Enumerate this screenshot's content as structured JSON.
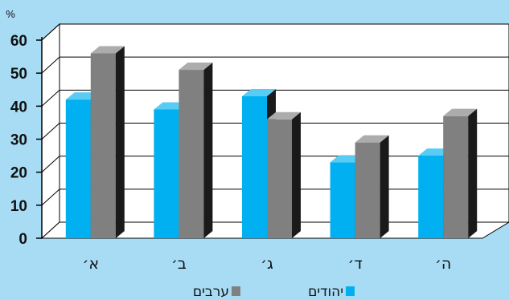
{
  "chart_data": {
    "type": "bar",
    "unit_label": "%",
    "categories": [
      "א׳",
      "ב׳",
      "ג׳",
      "ד׳",
      "ה׳"
    ],
    "series": [
      {
        "name": "יהודים",
        "values": [
          42,
          39,
          43,
          23,
          25
        ],
        "color": "#00b0f0"
      },
      {
        "name": "ערבים",
        "values": [
          56,
          51,
          36,
          29,
          37
        ],
        "color": "#808080"
      }
    ],
    "ylim": [
      0,
      60
    ],
    "yticks": [
      0,
      10,
      20,
      30,
      40,
      50,
      60
    ],
    "grid": true,
    "legend_position": "bottom"
  },
  "colors": {
    "background": "#a8dcf5",
    "plot_area": "#ffffff",
    "bar_side": "#1a1a1a"
  }
}
